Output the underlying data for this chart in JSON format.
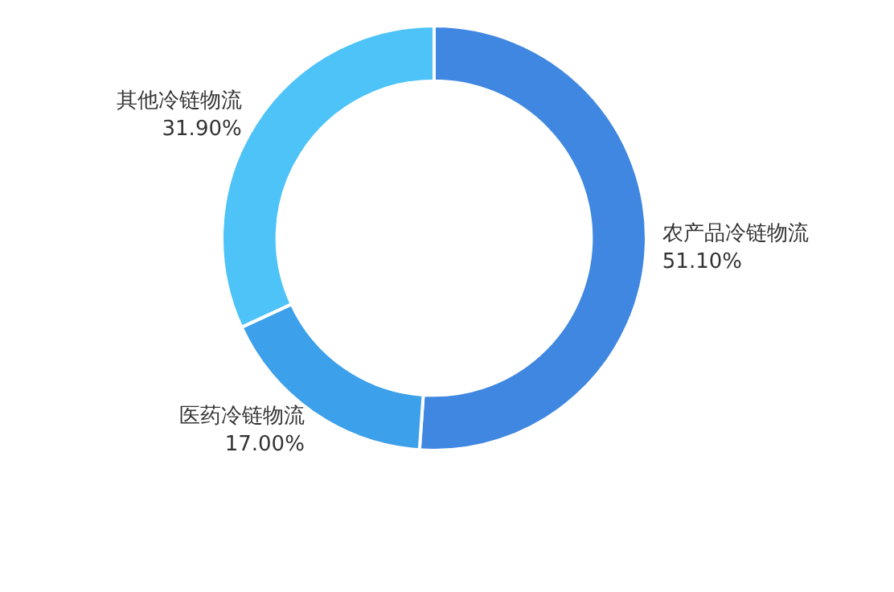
{
  "chart_data": {
    "type": "donut",
    "categories": [
      "农产品冷链物流",
      "医药冷链物流",
      "其他冷链物流"
    ],
    "values": [
      51.1,
      17.0,
      31.9
    ],
    "value_labels": [
      "51.10%",
      "17.00%",
      "31.90%"
    ],
    "colors": [
      "#3f87e0",
      "#3ca0ea",
      "#4dc3f8"
    ],
    "legend": false
  }
}
